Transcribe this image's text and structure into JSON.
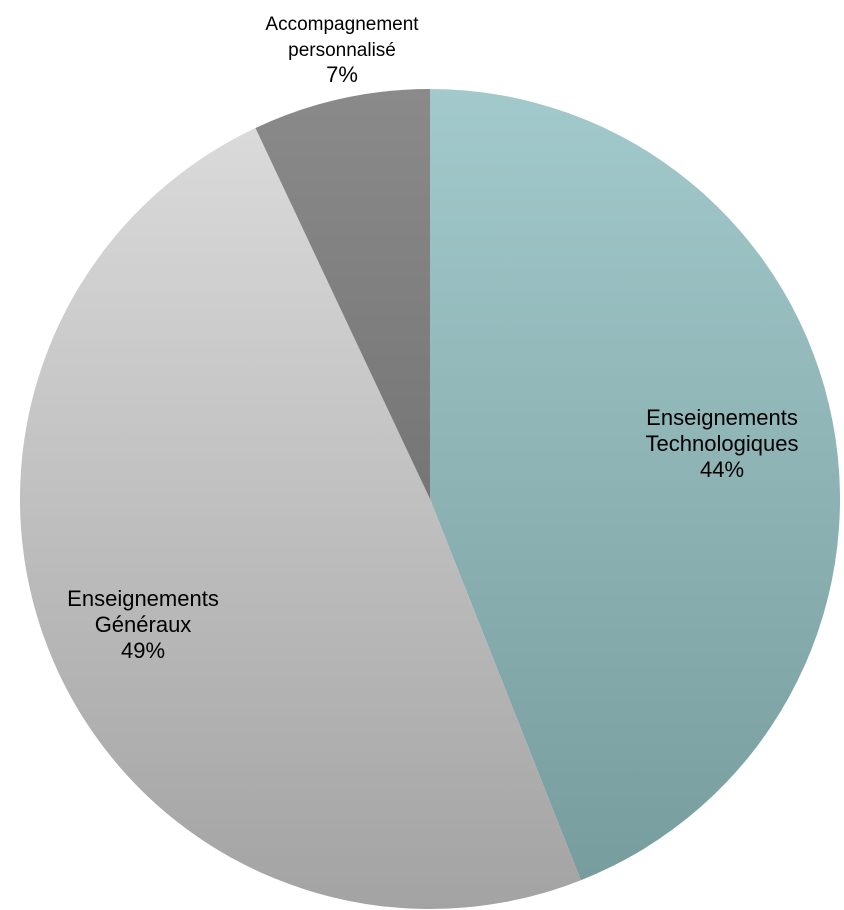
{
  "chart_data": {
    "type": "pie",
    "title": "",
    "start_angle_deg": 0,
    "direction": "clockwise",
    "slices": [
      {
        "label_lines": [
          "Enseignements",
          "Technologiques"
        ],
        "percent_label": "44%",
        "value": 44,
        "color_top": "#a2c9cb",
        "color_bottom": "#769b9c"
      },
      {
        "label_lines": [
          "Enseignements",
          "Généraux"
        ],
        "percent_label": "49%",
        "value": 49,
        "color_top": "#dddddd",
        "color_bottom": "#a3a3a3"
      },
      {
        "label_lines": [
          "Accompagnement",
          "personnalisé"
        ],
        "percent_label": "7%",
        "value": 7,
        "color_top": "#8a8a8a",
        "color_bottom": "#616161"
      }
    ]
  }
}
